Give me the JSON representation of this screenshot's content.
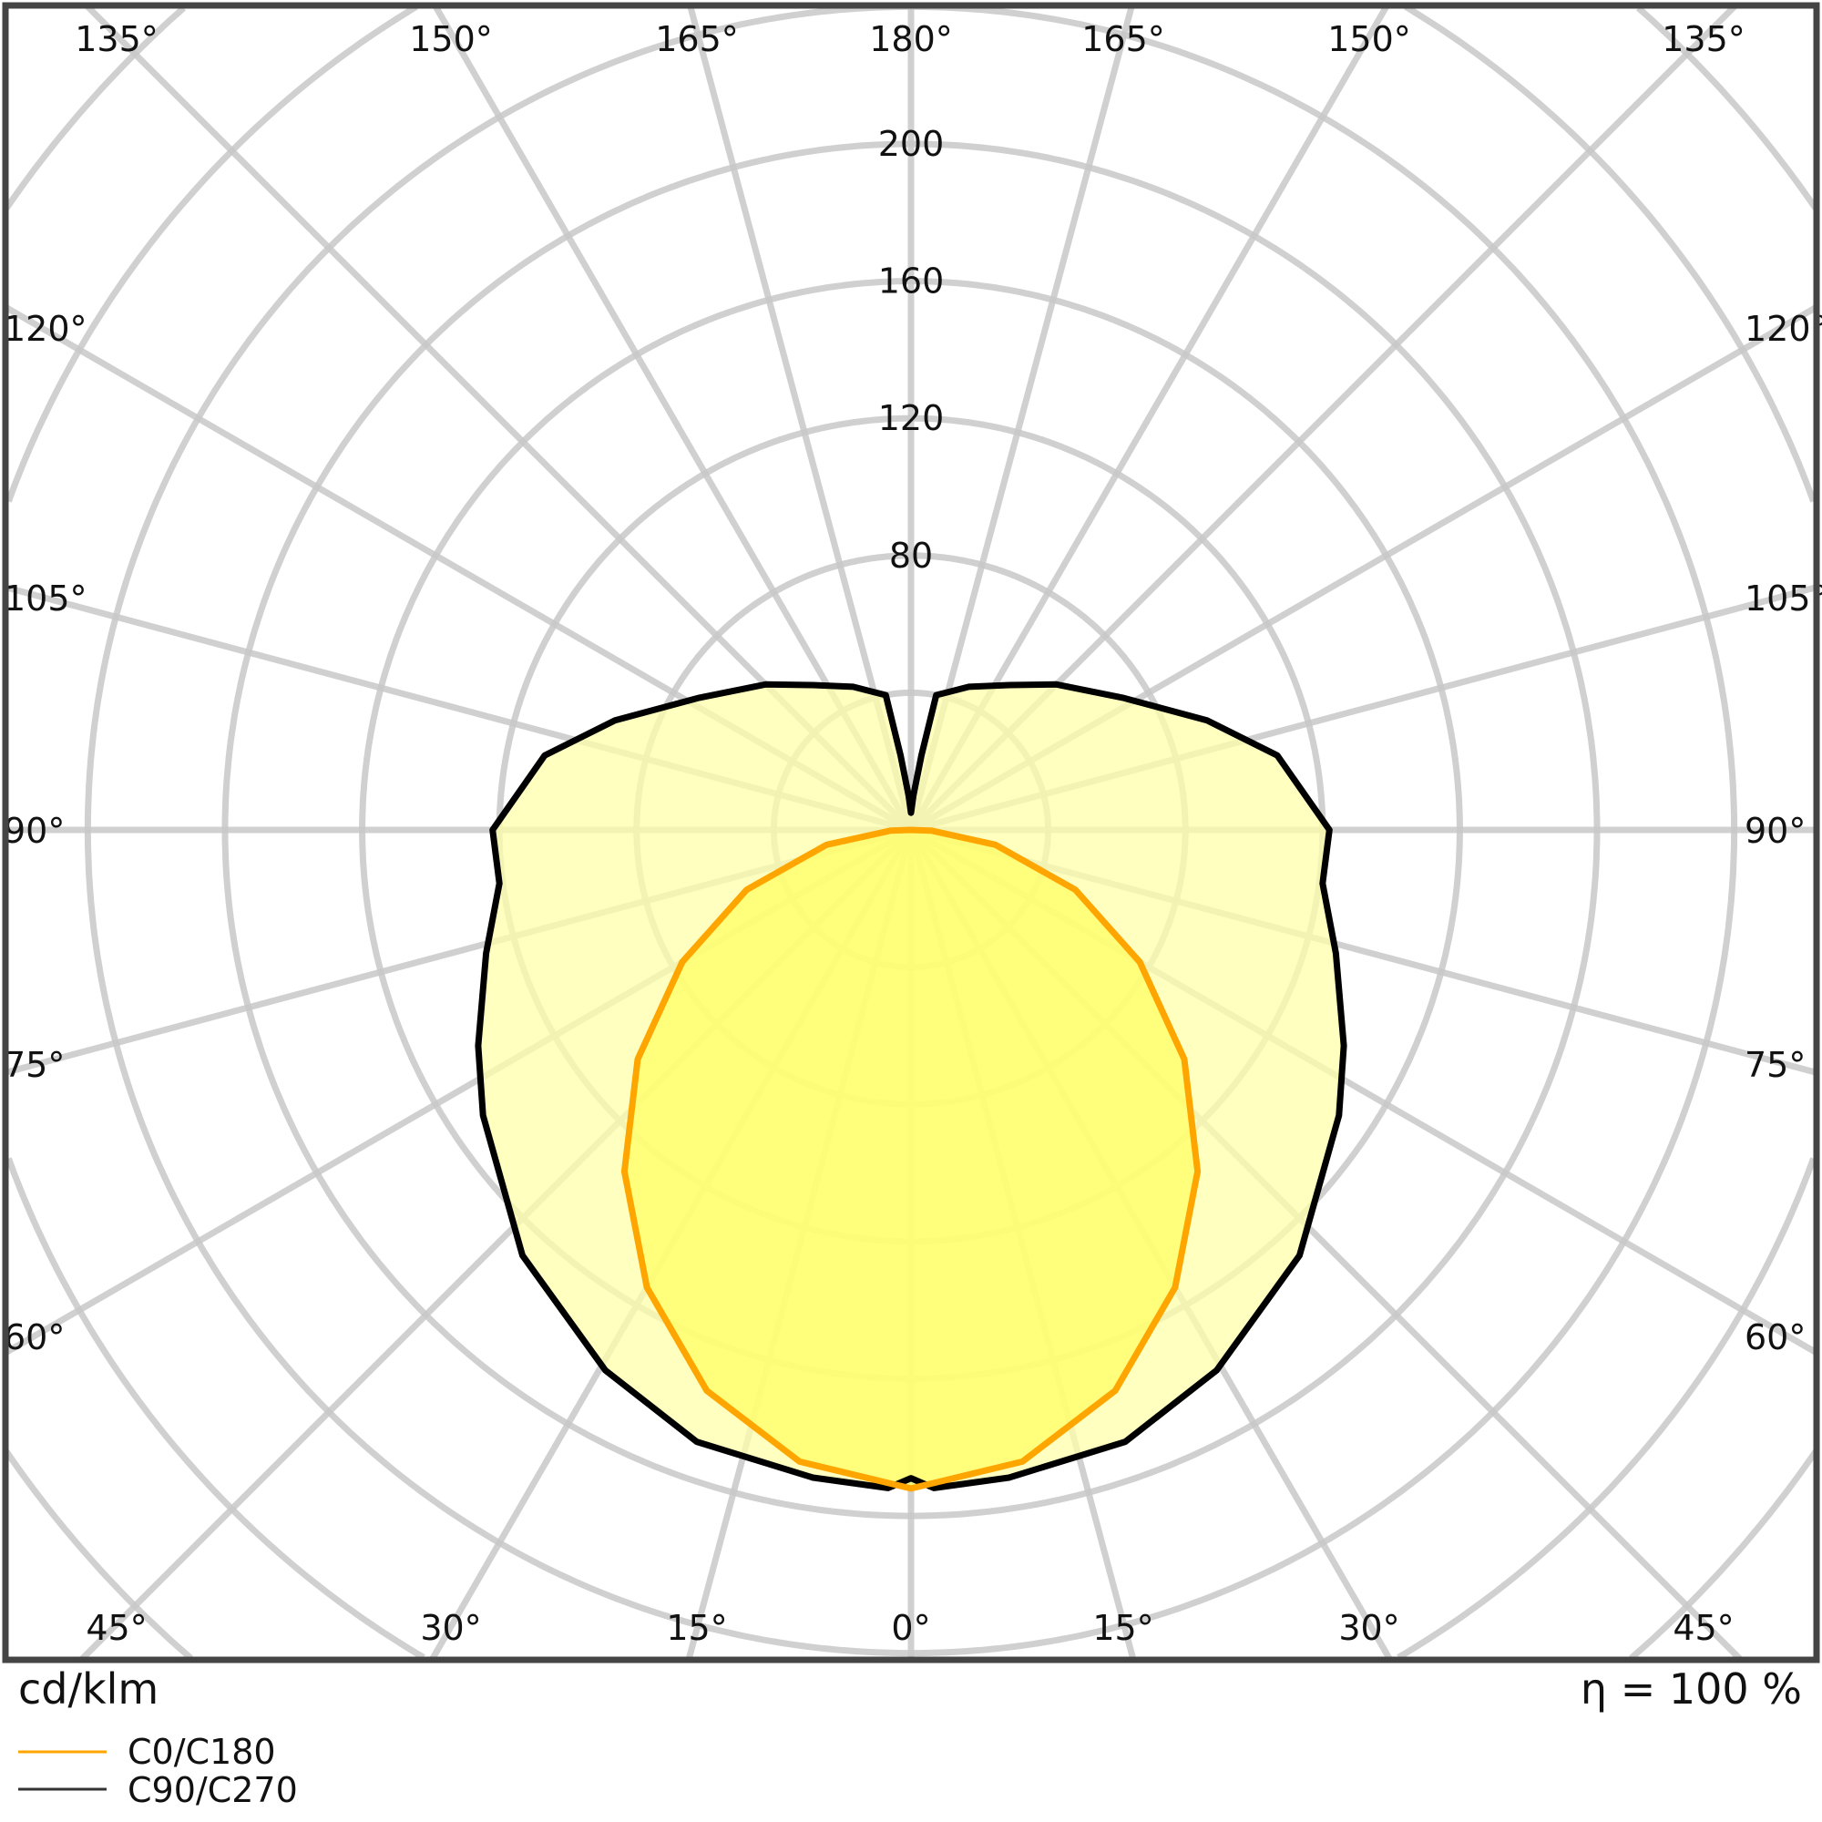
{
  "chart_data": {
    "type": "polar",
    "unit_label": "cd/klm",
    "efficiency_label": "η = 100 %",
    "radial_ticks": [
      80,
      120,
      160,
      200
    ],
    "radial_grid_step": 40,
    "radial_range": [
      0,
      320
    ],
    "angle_grid_step_deg": 15,
    "angle_labels": {
      "top": [
        "135°",
        "150°",
        "165°",
        "180°",
        "165°",
        "150°",
        "135°"
      ],
      "left": [
        "120°",
        "105°",
        "90°",
        "75°",
        "60°"
      ],
      "right": [
        "120°",
        "105°",
        "90°",
        "75°",
        "60°"
      ],
      "bottom": [
        "45°",
        "30°",
        "15°",
        "0°",
        "15°",
        "30°",
        "45°"
      ]
    },
    "grid": true,
    "legend_placement": "bottom-left",
    "series": [
      {
        "name": "C0/C180",
        "color": "#ffa500",
        "fill": "#ffff66",
        "angles": [
          0,
          10,
          20,
          30,
          40,
          50,
          60,
          70,
          80,
          88,
          90
        ],
        "values": [
          192,
          187,
          174,
          154,
          130,
          104,
          77,
          51,
          25,
          6,
          0
        ]
      },
      {
        "name": "C90/C270",
        "color": "#000000",
        "fill": "#ffffaa",
        "angles": [
          0,
          2,
          8.6,
          19.3,
          29.5,
          42.4,
          56.3,
          63.5,
          73.8,
          82.6,
          90,
          101.5,
          110.3,
          121.8,
          135,
          145.9,
          158,
          164,
          169.4,
          172,
          176,
          180
        ],
        "values": [
          189,
          192,
          191,
          189,
          181,
          168,
          150,
          141,
          129,
          121,
          122,
          109,
          92,
          73,
          60,
          51,
          45,
          42,
          40,
          22,
          10,
          5
        ]
      }
    ]
  }
}
